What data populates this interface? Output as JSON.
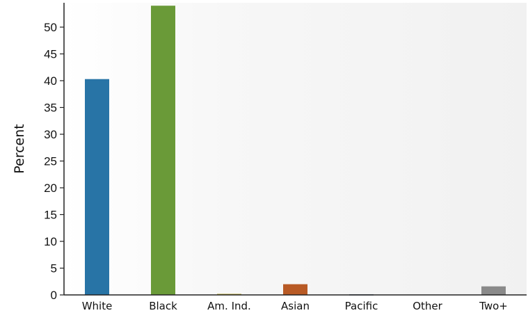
{
  "chart_data": {
    "type": "bar",
    "title": "",
    "xlabel": "",
    "ylabel": "Percent",
    "categories": [
      "White",
      "Black",
      "Am. Ind.",
      "Asian",
      "Pacific",
      "Other",
      "Two+"
    ],
    "values": [
      40.3,
      54.0,
      0.2,
      2.0,
      0.1,
      0.0,
      1.6
    ],
    "colors": [
      "#2874a6",
      "#6a9a38",
      "#b5a630",
      "#b85a25",
      "#3d5570",
      "#d0d0d0",
      "#8a8a8a"
    ],
    "yticks": [
      0,
      5,
      10,
      15,
      20,
      25,
      30,
      35,
      40,
      45,
      50
    ],
    "ylim": [
      0,
      54
    ],
    "grid": false,
    "legend": "none"
  }
}
